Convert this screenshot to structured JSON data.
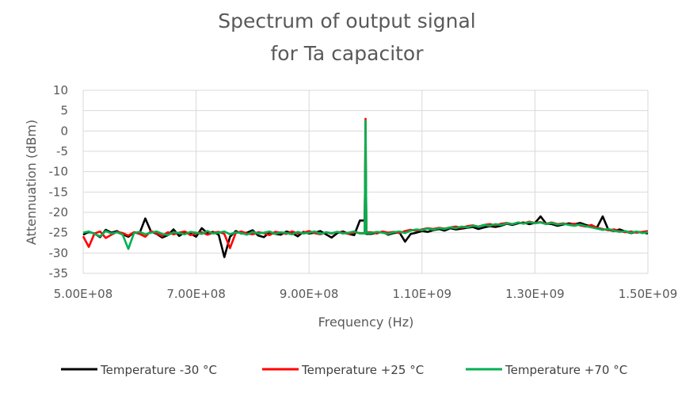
{
  "chart_data": {
    "type": "line",
    "title_lines": [
      "Spectrum of output signal",
      "for Ta capacitor"
    ],
    "xlabel": "Frequency (Hz)",
    "ylabel": "Attennuation (dBm)",
    "xlim": [
      500000000,
      1500000000
    ],
    "ylim": [
      -35,
      10
    ],
    "x_ticks": [
      500000000,
      700000000,
      900000000,
      1100000000,
      1300000000,
      1500000000
    ],
    "x_tick_labels": [
      "5.00E+08",
      "7.00E+08",
      "9.00E+08",
      "1.10E+09",
      "1.30E+09",
      "1.50E+09"
    ],
    "y_ticks": [
      10,
      5,
      0,
      -5,
      -10,
      -15,
      -20,
      -25,
      -30,
      -35
    ],
    "y_tick_labels": [
      "10",
      "5",
      "0",
      "-5",
      "-10",
      "-15",
      "-20",
      "-25",
      "-30",
      "-35"
    ],
    "grid": true,
    "legend_position": "bottom",
    "peak": {
      "x": 1000000000,
      "y": 3
    },
    "series": [
      {
        "name": "Temperature -30 °C",
        "color": "#000000",
        "x_step": 10000000,
        "x_start": 500000000,
        "values": [
          -25.5,
          -24.8,
          -25.2,
          -26.1,
          -24.3,
          -25.0,
          -24.6,
          -25.4,
          -26.0,
          -24.9,
          -25.1,
          -21.5,
          -24.7,
          -25.3,
          -26.2,
          -25.6,
          -24.2,
          -25.8,
          -24.9,
          -25.2,
          -26.0,
          -23.9,
          -25.1,
          -24.8,
          -25.5,
          -31.0,
          -26.0,
          -24.6,
          -25.2,
          -25.0,
          -24.4,
          -25.7,
          -26.1,
          -24.9,
          -25.3,
          -25.5,
          -24.7,
          -25.1,
          -25.9,
          -24.8,
          -25.2,
          -25.0,
          -24.6,
          -25.4,
          -26.2,
          -25.1,
          -24.7,
          -25.3,
          -25.6,
          -22.0,
          -3.0,
          -25.3,
          -25.0,
          -24.8,
          -25.5,
          -25.1,
          -24.9,
          -27.2,
          -25.3,
          -25.0,
          -24.6,
          -24.8,
          -24.4,
          -24.1,
          -24.5,
          -23.9,
          -24.2,
          -24.0,
          -23.8,
          -23.6,
          -24.1,
          -23.7,
          -23.4,
          -23.6,
          -23.3,
          -22.8,
          -23.1,
          -22.7,
          -22.5,
          -22.9,
          -22.6,
          -21.0,
          -22.8,
          -22.9,
          -23.3,
          -23.0,
          -22.7,
          -22.9,
          -22.6,
          -23.1,
          -23.4,
          -23.7,
          -21.0,
          -24.3,
          -24.6,
          -24.2,
          -24.7,
          -25.1,
          -24.8,
          -24.9,
          -25.2
        ]
      },
      {
        "name": "Temperature +25 °C",
        "color": "#ff0000",
        "x_step": 10000000,
        "x_start": 500000000,
        "values": [
          -25.9,
          -28.5,
          -25.2,
          -24.7,
          -26.3,
          -25.5,
          -24.8,
          -25.1,
          -25.7,
          -24.9,
          -25.3,
          -26.0,
          -24.6,
          -25.2,
          -25.8,
          -24.9,
          -25.4,
          -25.0,
          -24.7,
          -25.6,
          -25.2,
          -24.9,
          -25.5,
          -25.0,
          -24.8,
          -25.3,
          -28.8,
          -25.1,
          -24.7,
          -25.2,
          -25.4,
          -24.9,
          -25.1,
          -25.6,
          -24.8,
          -25.0,
          -25.3,
          -24.7,
          -25.2,
          -25.0,
          -24.6,
          -25.1,
          -25.4,
          -24.9,
          -25.2,
          -24.8,
          -25.0,
          -25.3,
          -24.9,
          -25.1,
          3.0,
          -24.9,
          -25.2,
          -24.7,
          -25.0,
          -24.8,
          -25.1,
          -24.6,
          -24.3,
          -24.5,
          -24.2,
          -23.9,
          -24.1,
          -23.8,
          -24.0,
          -23.7,
          -23.5,
          -23.8,
          -23.4,
          -23.2,
          -23.5,
          -23.1,
          -22.9,
          -23.2,
          -22.8,
          -22.6,
          -22.9,
          -22.5,
          -22.7,
          -22.3,
          -22.6,
          -22.4,
          -22.8,
          -22.5,
          -22.9,
          -22.7,
          -23.0,
          -22.8,
          -23.2,
          -23.5,
          -23.1,
          -23.8,
          -24.1,
          -24.4,
          -24.2,
          -24.6,
          -24.9,
          -24.7,
          -25.0,
          -24.8,
          -24.6
        ]
      },
      {
        "name": "Temperature +70 °C",
        "color": "#00b050",
        "x_step": 10000000,
        "x_start": 500000000,
        "values": [
          -25.0,
          -24.7,
          -25.3,
          -25.9,
          -24.6,
          -25.2,
          -24.9,
          -25.5,
          -29.0,
          -25.1,
          -24.8,
          -25.4,
          -25.0,
          -24.7,
          -25.3,
          -25.6,
          -24.9,
          -25.1,
          -25.4,
          -24.8,
          -25.0,
          -25.3,
          -24.6,
          -25.2,
          -25.0,
          -24.7,
          -25.4,
          -24.9,
          -25.1,
          -25.5,
          -24.8,
          -25.2,
          -25.0,
          -24.7,
          -25.3,
          -24.9,
          -25.1,
          -25.4,
          -24.8,
          -25.2,
          -25.0,
          -24.7,
          -25.3,
          -24.9,
          -25.1,
          -24.8,
          -25.2,
          -25.0,
          -24.7,
          -25.2,
          2.5,
          -25.1,
          -24.8,
          -25.0,
          -25.3,
          -24.9,
          -24.7,
          -25.1,
          -24.5,
          -24.2,
          -24.4,
          -24.0,
          -24.3,
          -23.9,
          -24.1,
          -23.7,
          -23.9,
          -23.5,
          -23.7,
          -23.3,
          -23.5,
          -23.1,
          -23.3,
          -22.9,
          -23.1,
          -22.7,
          -22.9,
          -22.5,
          -22.8,
          -22.4,
          -22.7,
          -22.5,
          -22.9,
          -22.6,
          -23.0,
          -22.8,
          -23.1,
          -23.3,
          -23.0,
          -23.4,
          -23.7,
          -24.0,
          -24.3,
          -24.1,
          -24.5,
          -24.8,
          -24.6,
          -25.0,
          -24.7,
          -25.1,
          -24.9
        ]
      }
    ]
  }
}
